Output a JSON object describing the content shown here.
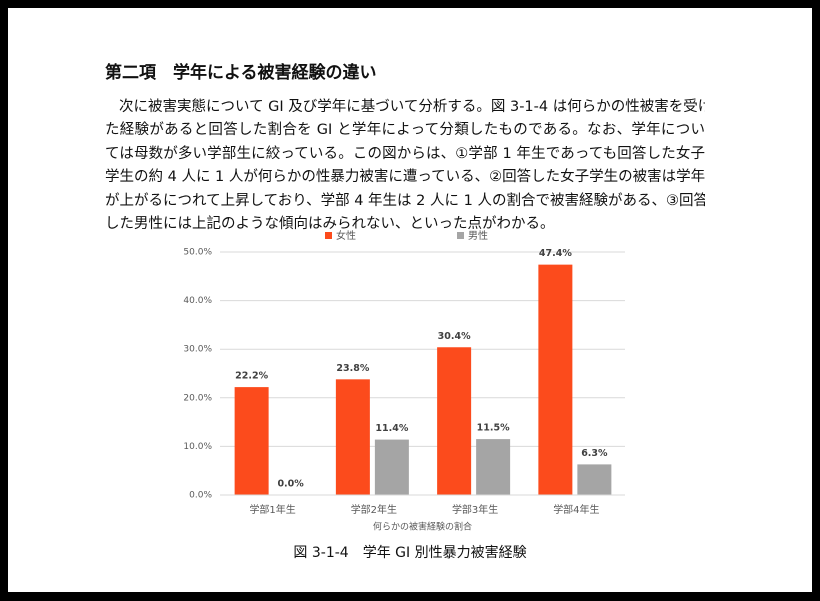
{
  "heading": "第二項　学年による被害経験の違い",
  "paragraph": [
    "次に被害実態について GI 及び学年に基づいて分析する。図 3-1-4 は何らかの性被害を受け",
    "た経験があると回答した割合を GI と学年によって分類したものである。なお、学年につい",
    "ては母数が多い学部生に絞っている。この図からは、①学部 1 年生であっても回答した女子",
    "学生の約 4 人に 1 人が何らかの性暴力被害に遭っている、②回答した女子学生の被害は学年",
    "が上がるにつれて上昇しており、学部 4 年生は 2 人に 1 人の割合で被害経験がある、③回答",
    "した男性には上記のような傾向はみられない、といった点がわかる。"
  ],
  "chart_data": {
    "type": "bar",
    "x_label": "何らかの被害経験の割合",
    "categories": [
      "学部1年生",
      "学部2年生",
      "学部3年生",
      "学部4年生"
    ],
    "series": [
      {
        "name": "女性",
        "color": "#fc4b1c",
        "values": [
          22.2,
          23.8,
          30.4,
          47.4
        ],
        "value_labels": [
          "22.2%",
          "23.8%",
          "30.4%",
          "47.4%"
        ]
      },
      {
        "name": "男性",
        "color": "#a5a5a5",
        "values": [
          0.0,
          11.4,
          11.5,
          6.3
        ],
        "value_labels": [
          "0.0%",
          "11.4%",
          "11.5%",
          "6.3%"
        ]
      }
    ],
    "ylim": [
      0,
      50
    ],
    "yticks": [
      {
        "value": 0,
        "label": "0.0%"
      },
      {
        "value": 10,
        "label": "10.0%"
      },
      {
        "value": 20,
        "label": "20.0%"
      },
      {
        "value": 30,
        "label": "30.0%"
      },
      {
        "value": 40,
        "label": "40.0%"
      },
      {
        "value": 50,
        "label": "50.0%"
      }
    ],
    "grid": true,
    "legend": "top"
  },
  "caption": "図 3-1-4　学年 GI 別性暴力被害経験"
}
